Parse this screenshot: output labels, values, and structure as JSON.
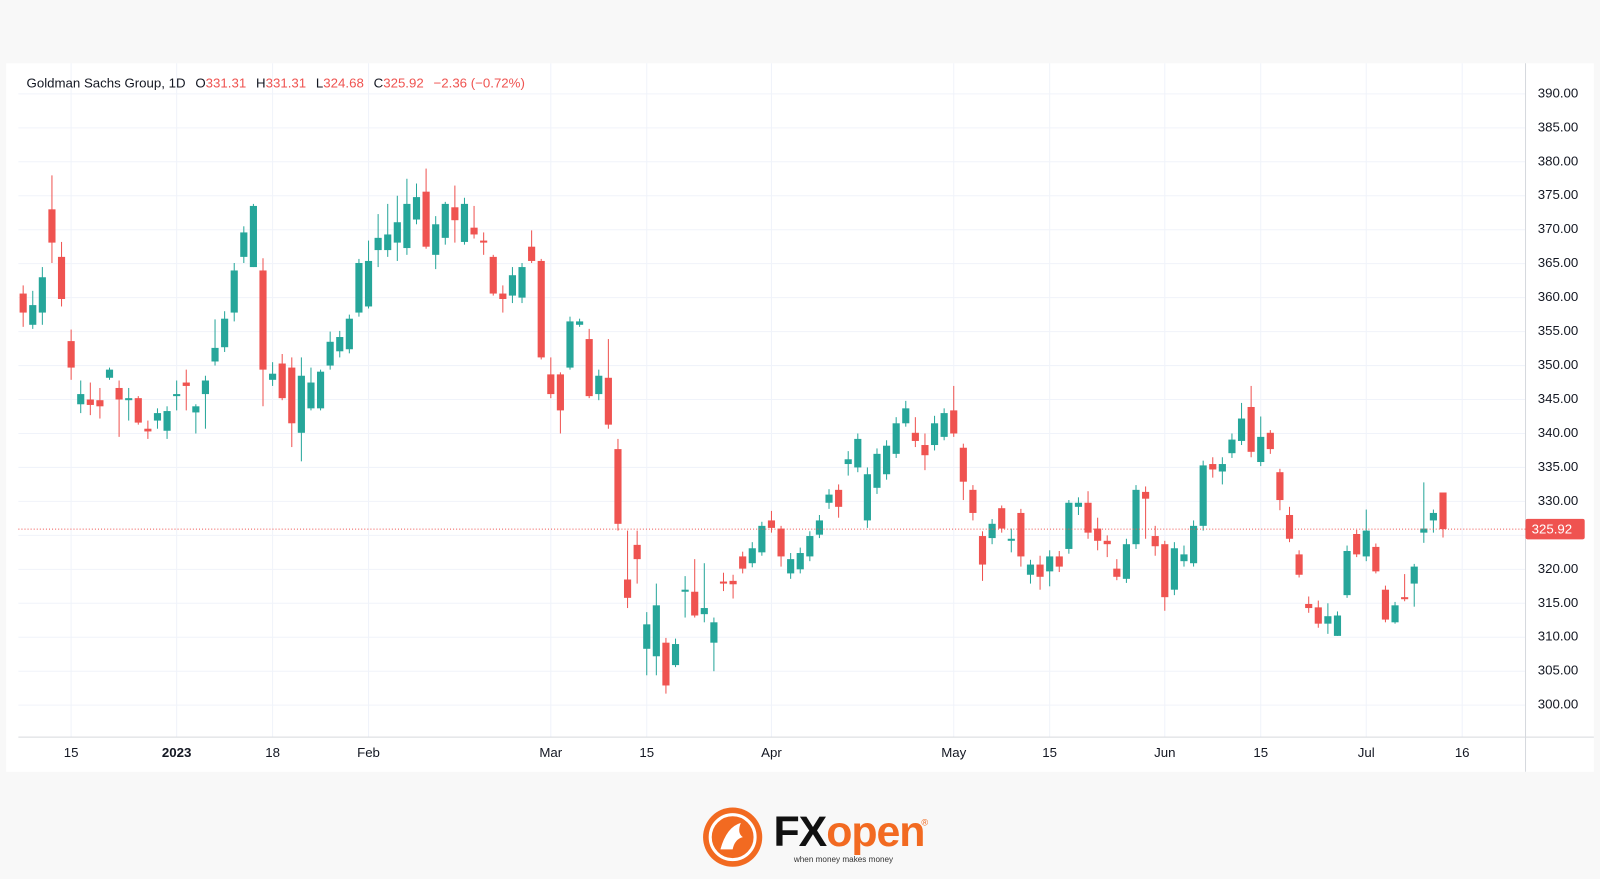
{
  "chart_data": {
    "type": "candlestick",
    "symbol": "Goldman Sachs Group, 1D",
    "ohlc_labels": [
      "O",
      "H",
      "L",
      "C"
    ],
    "change": {
      "value": -2.36,
      "label": "−2.36"
    },
    "change_pct": {
      "value": -0.72,
      "label": "(−0.72%)"
    },
    "up_color": "#26a69a",
    "down_color": "#ef5350",
    "grid": true,
    "categories": [
      null,
      null,
      null,
      null,
      null,
      "15",
      null,
      null,
      null,
      null,
      null,
      null,
      null,
      null,
      null,
      null,
      "2023",
      null,
      null,
      null,
      null,
      null,
      null,
      null,
      null,
      null,
      "18",
      null,
      null,
      null,
      null,
      null,
      null,
      null,
      null,
      null,
      "Feb",
      null,
      null,
      null,
      null,
      null,
      null,
      null,
      null,
      null,
      null,
      null,
      null,
      null,
      null,
      null,
      null,
      null,
      null,
      "Mar",
      null,
      null,
      null,
      null,
      null,
      null,
      null,
      null,
      null,
      "15",
      null,
      null,
      null,
      null,
      null,
      null,
      null,
      null,
      null,
      null,
      null,
      null,
      "Apr",
      null,
      null,
      null,
      null,
      null,
      null,
      null,
      null,
      null,
      null,
      null,
      null,
      null,
      null,
      null,
      null,
      null,
      null,
      "May",
      null,
      null,
      null,
      null,
      null,
      null,
      null,
      null,
      null,
      "15",
      null,
      null,
      null,
      null,
      null,
      null,
      null,
      null,
      null,
      null,
      null,
      "Jun",
      null,
      null,
      null,
      null,
      null,
      null,
      null,
      null,
      null,
      "15",
      null,
      null,
      null,
      null,
      null,
      null,
      null,
      null,
      null,
      null,
      "Jul",
      null,
      null,
      null,
      null,
      null,
      null,
      null,
      null,
      null,
      "16"
    ],
    "open": [
      360.6,
      356.0,
      357.8,
      373.0,
      366.0,
      353.6,
      344.3,
      345.0,
      344.9,
      348.2,
      346.7,
      344.9,
      345.2,
      340.7,
      341.9,
      340.4,
      345.5,
      347.5,
      343.1,
      345.8,
      350.6,
      352.7,
      357.8,
      366.0,
      364.5,
      364.0,
      347.9,
      350.3,
      349.7,
      340.1,
      343.7,
      343.7,
      350.0,
      352.1,
      352.4,
      357.8,
      358.7,
      367.0,
      367.0,
      368.1,
      367.3,
      371.5,
      375.6,
      366.3,
      368.8,
      373.3,
      368.2,
      370.3,
      368.4,
      366.0,
      360.6,
      360.3,
      360.0,
      367.5,
      365.4,
      348.7,
      348.7,
      349.7,
      356.0,
      353.9,
      345.8,
      348.2,
      337.7,
      318.5,
      323.6,
      308.3,
      307.2,
      309.2,
      305.9,
      316.7,
      316.7,
      313.4,
      309.2,
      318.2,
      318.3,
      321.9,
      320.9,
      322.5,
      327.2,
      326.0,
      319.4,
      320.0,
      321.9,
      325.1,
      329.8,
      331.7,
      335.5,
      335.0,
      327.2,
      332.0,
      334.0,
      337.0,
      341.5,
      340.1,
      338.3,
      338.3,
      339.5,
      343.4,
      337.9,
      331.7,
      324.9,
      324.6,
      329.0,
      324.2,
      328.3,
      319.2,
      320.7,
      319.7,
      321.9,
      323.0,
      329.2,
      329.8,
      326.0,
      324.2,
      320.1,
      318.6,
      323.7,
      331.4,
      324.9,
      323.7,
      317.0,
      321.2,
      320.9,
      326.4,
      335.5,
      334.4,
      337.1,
      338.9,
      343.9,
      335.8,
      340.1,
      334.3,
      328.0,
      322.2,
      314.9,
      314.4,
      312.0,
      310.2,
      316.2,
      325.2,
      321.9,
      323.3,
      317.0,
      312.2,
      315.9,
      317.9,
      325.4,
      327.2,
      331.31,
      null,
      null
    ],
    "high": [
      361.8,
      361.0,
      364.5,
      378.0,
      368.2,
      355.3,
      347.8,
      347.5,
      346.7,
      349.7,
      347.8,
      346.7,
      345.5,
      341.9,
      343.7,
      344.0,
      347.8,
      349.4,
      344.3,
      348.5,
      356.8,
      358.0,
      365.1,
      370.5,
      373.8,
      365.8,
      350.5,
      351.7,
      351.2,
      351.2,
      349.7,
      349.4,
      355.0,
      355.1,
      357.5,
      365.7,
      368.4,
      372.3,
      373.8,
      375.0,
      377.5,
      376.8,
      379.0,
      372.0,
      374.1,
      376.5,
      374.7,
      373.5,
      369.6,
      366.3,
      361.8,
      364.5,
      365.1,
      369.9,
      365.7,
      351.2,
      349.0,
      357.2,
      356.9,
      355.4,
      349.4,
      353.9,
      339.2,
      325.7,
      325.7,
      313.7,
      317.9,
      309.9,
      309.8,
      319.0,
      321.5,
      320.9,
      312.9,
      319.5,
      319.2,
      322.6,
      324.0,
      327.0,
      328.6,
      326.4,
      322.4,
      323.2,
      325.6,
      328.0,
      331.8,
      332.5,
      337.4,
      340.0,
      335.0,
      337.8,
      339.0,
      342.4,
      344.8,
      342.4,
      340.0,
      342.6,
      343.7,
      347.0,
      338.5,
      332.4,
      325.6,
      327.4,
      329.4,
      326.0,
      328.9,
      321.4,
      322.0,
      322.8,
      322.7,
      330.2,
      330.6,
      331.5,
      327.6,
      325.0,
      321.5,
      324.5,
      332.4,
      332.2,
      326.4,
      324.2,
      324.0,
      323.5,
      327.2,
      336.0,
      336.5,
      336.5,
      340.0,
      344.5,
      347.0,
      342.5,
      340.5,
      334.8,
      329.2,
      322.8,
      316.0,
      315.4,
      315.0,
      313.8,
      323.5,
      325.8,
      328.8,
      323.8,
      317.6,
      315.2,
      319.3,
      320.8,
      332.8,
      328.8,
      331.31,
      null,
      null
    ],
    "low": [
      355.7,
      355.4,
      356.0,
      365.1,
      358.7,
      347.9,
      343.0,
      342.7,
      342.2,
      347.9,
      339.5,
      341.9,
      341.3,
      339.2,
      340.7,
      339.2,
      343.4,
      343.4,
      340.0,
      340.7,
      350.0,
      352.0,
      356.5,
      365.1,
      364.5,
      344.0,
      347.0,
      344.9,
      338.0,
      335.9,
      343.4,
      343.4,
      349.4,
      351.2,
      351.8,
      357.2,
      358.4,
      364.5,
      366.0,
      365.4,
      366.3,
      370.8,
      367.2,
      364.2,
      367.8,
      368.1,
      367.8,
      368.7,
      366.3,
      360.3,
      357.8,
      359.2,
      359.2,
      365.1,
      350.9,
      345.2,
      340.0,
      349.4,
      355.7,
      345.2,
      344.9,
      340.7,
      325.7,
      314.3,
      317.9,
      304.4,
      304.4,
      301.7,
      305.6,
      312.9,
      312.9,
      312.2,
      305.0,
      316.8,
      315.7,
      319.4,
      320.3,
      322.0,
      325.4,
      320.4,
      318.6,
      319.4,
      321.2,
      324.6,
      328.9,
      327.6,
      333.8,
      334.3,
      326.1,
      331.1,
      333.2,
      336.4,
      341.0,
      338.0,
      334.6,
      337.5,
      339.0,
      339.5,
      330.2,
      327.2,
      318.3,
      323.7,
      325.4,
      322.5,
      320.4,
      317.9,
      317.0,
      317.5,
      319.6,
      322.3,
      328.0,
      324.5,
      322.8,
      321.8,
      318.4,
      318.0,
      323.0,
      324.5,
      322.0,
      313.9,
      316.2,
      320.4,
      320.4,
      325.7,
      333.5,
      332.5,
      336.4,
      338.3,
      336.5,
      335.2,
      337.0,
      328.7,
      324.0,
      318.8,
      313.6,
      311.4,
      310.5,
      310.2,
      315.8,
      321.8,
      321.2,
      319.4,
      312.2,
      312.0,
      315.3,
      314.5,
      323.9,
      325.4,
      324.68,
      null,
      null
    ],
    "close": [
      357.8,
      358.9,
      363.0,
      368.1,
      359.8,
      349.7,
      345.8,
      344.2,
      344.0,
      349.4,
      345.0,
      345.2,
      341.6,
      340.3,
      343.0,
      343.3,
      345.8,
      347.0,
      344.0,
      347.8,
      352.6,
      356.9,
      364.0,
      369.6,
      373.5,
      349.4,
      348.8,
      345.2,
      341.5,
      348.5,
      347.5,
      349.1,
      353.5,
      354.2,
      356.9,
      365.1,
      365.4,
      368.8,
      369.3,
      371.1,
      373.8,
      374.8,
      367.5,
      370.8,
      373.8,
      371.4,
      373.8,
      369.3,
      368.1,
      360.6,
      359.8,
      363.3,
      364.5,
      365.4,
      351.2,
      345.8,
      343.4,
      356.5,
      356.5,
      345.5,
      348.5,
      341.3,
      326.7,
      315.8,
      321.5,
      311.9,
      314.7,
      302.9,
      309.0,
      317.0,
      313.2,
      314.3,
      312.2,
      317.9,
      317.8,
      320.1,
      323.1,
      326.4,
      326.1,
      321.9,
      321.5,
      322.4,
      324.9,
      327.2,
      331.0,
      329.2,
      336.2,
      339.2,
      334.0,
      337.0,
      338.2,
      341.5,
      343.7,
      338.9,
      336.8,
      341.5,
      343.0,
      340.0,
      332.9,
      328.3,
      320.7,
      326.7,
      326.0,
      324.5,
      321.9,
      320.7,
      318.9,
      321.9,
      320.4,
      329.8,
      329.8,
      325.4,
      324.2,
      323.7,
      318.9,
      323.7,
      331.7,
      330.4,
      323.4,
      315.9,
      323.1,
      322.2,
      326.4,
      335.3,
      334.7,
      335.5,
      339.1,
      342.2,
      337.3,
      339.5,
      337.7,
      330.2,
      324.5,
      319.2,
      314.3,
      312.0,
      313.1,
      313.2,
      322.7,
      322.2,
      325.7,
      319.7,
      312.6,
      314.7,
      315.6,
      320.4,
      326.0,
      328.3,
      325.92,
      null,
      null
    ],
    "xlim": [
      -0.5,
      156.6
    ],
    "ylim": [
      295.3,
      394.5
    ],
    "yticks": [
      {
        "value": 300,
        "label": "300.00"
      },
      {
        "value": 305,
        "label": "305.00"
      },
      {
        "value": 310,
        "label": "310.00"
      },
      {
        "value": 315,
        "label": "315.00"
      },
      {
        "value": 320,
        "label": "320.00"
      },
      {
        "value": 325,
        "label": "325.00"
      },
      {
        "value": 330,
        "label": "330.00"
      },
      {
        "value": 335,
        "label": "335.00"
      },
      {
        "value": 340,
        "label": "340.00"
      },
      {
        "value": 345,
        "label": "345.00"
      },
      {
        "value": 350,
        "label": "350.00"
      },
      {
        "value": 355,
        "label": "355.00"
      },
      {
        "value": 360,
        "label": "360.00"
      },
      {
        "value": 365,
        "label": "365.00"
      },
      {
        "value": 370,
        "label": "370.00"
      },
      {
        "value": 375,
        "label": "375.00"
      },
      {
        "value": 380,
        "label": "380.00"
      },
      {
        "value": 385,
        "label": "385.00"
      },
      {
        "value": 390,
        "label": "390.00"
      }
    ]
  },
  "brand": {
    "name_prefix": "FX",
    "name_suffix": "open",
    "registered": "®",
    "tagline": "when money makes money"
  }
}
